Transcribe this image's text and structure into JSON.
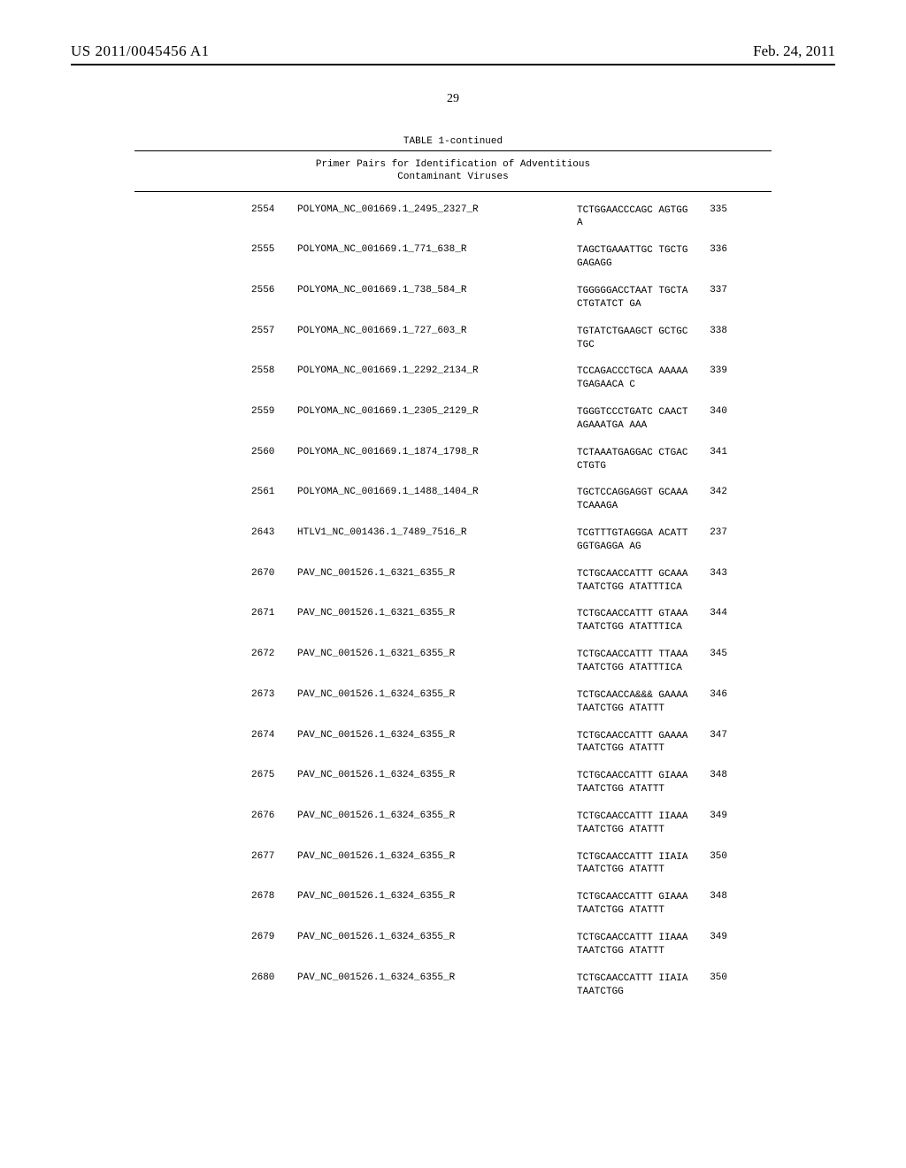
{
  "header": {
    "pub_number": "US 2011/0045456 A1",
    "pub_date": "Feb. 24, 2011"
  },
  "page_number": "29",
  "table": {
    "title": "TABLE 1-continued",
    "subtitle_line1": "Primer Pairs for Identification of Adventitious",
    "subtitle_line2": "Contaminant Viruses"
  },
  "rows": [
    {
      "id": "2554",
      "name": "POLYOMA_NC_001669.1_2495_2327_R",
      "seq": "TCTGGAACCCAGC AGTGGA",
      "num": "335"
    },
    {
      "id": "2555",
      "name": "POLYOMA_NC_001669.1_771_638_R",
      "seq": "TAGCTGAAATTGC TGCTGGAGAGG",
      "num": "336"
    },
    {
      "id": "2556",
      "name": "POLYOMA_NC_001669.1_738_584_R",
      "seq": "TGGGGGACCTAAT TGCTACTGTATCT GA",
      "num": "337"
    },
    {
      "id": "2557",
      "name": "POLYOMA_NC_001669.1_727_603_R",
      "seq": "TGTATCTGAAGCT GCTGCTGC",
      "num": "338"
    },
    {
      "id": "2558",
      "name": "POLYOMA_NC_001669.1_2292_2134_R",
      "seq": "TCCAGACCCTGCA AAAAATGAGAACA C",
      "num": "339"
    },
    {
      "id": "2559",
      "name": "POLYOMA_NC_001669.1_2305_2129_R",
      "seq": "TGGGTCCCTGATC CAACTAGAAATGA AAA",
      "num": "340"
    },
    {
      "id": "2560",
      "name": "POLYOMA_NC_001669.1_1874_1798_R",
      "seq": "TCTAAATGAGGAC CTGACCTGTG",
      "num": "341"
    },
    {
      "id": "2561",
      "name": "POLYOMA_NC_001669.1_1488_1404_R",
      "seq": "TGCTCCAGGAGGT GCAAATCAAAGA",
      "num": "342"
    },
    {
      "id": "2643",
      "name": "HTLV1_NC_001436.1_7489_7516_R",
      "seq": "TCGTTTGTAGGGA ACATTGGTGAGGA AG",
      "num": "237"
    },
    {
      "id": "2670",
      "name": "PAV_NC_001526.1_6321_6355_R",
      "seq": "TCTGCAACCATTT GCAAATAATCTGG ATATTTICA",
      "num": "343"
    },
    {
      "id": "2671",
      "name": "PAV_NC_001526.1_6321_6355_R",
      "seq": "TCTGCAACCATTT GTAAATAATCTGG ATATTTICA",
      "num": "344"
    },
    {
      "id": "2672",
      "name": "PAV_NC_001526.1_6321_6355_R",
      "seq": "TCTGCAACCATTT TTAAATAATCTGG ATATTTICA",
      "num": "345"
    },
    {
      "id": "2673",
      "name": "PAV_NC_001526.1_6324_6355_R",
      "seq": "TCTGCAACCA&&& GAAAATAATCTGG ATATTT",
      "num": "346"
    },
    {
      "id": "2674",
      "name": "PAV_NC_001526.1_6324_6355_R",
      "seq": "TCTGCAACCATTT GAAAATAATCTGG ATATTT",
      "num": "347"
    },
    {
      "id": "2675",
      "name": "PAV_NC_001526.1_6324_6355_R",
      "seq": "TCTGCAACCATTT GIAAATAATCTGG ATATTT",
      "num": "348"
    },
    {
      "id": "2676",
      "name": "PAV_NC_001526.1_6324_6355_R",
      "seq": "TCTGCAACCATTT IIAAATAATCTGG ATATTT",
      "num": "349"
    },
    {
      "id": "2677",
      "name": "PAV_NC_001526.1_6324_6355_R",
      "seq": "TCTGCAACCATTT IIAIATAATCTGG ATATTT",
      "num": "350"
    },
    {
      "id": "2678",
      "name": "PAV_NC_001526.1_6324_6355_R",
      "seq": "TCTGCAACCATTT GIAAATAATCTGG ATATTT",
      "num": "348"
    },
    {
      "id": "2679",
      "name": "PAV_NC_001526.1_6324_6355_R",
      "seq": "TCTGCAACCATTT IIAAATAATCTGG ATATTT",
      "num": "349"
    },
    {
      "id": "2680",
      "name": "PAV_NC_001526.1_6324_6355_R",
      "seq": "TCTGCAACCATTT IIAIATAATCTGG",
      "num": "350"
    }
  ]
}
